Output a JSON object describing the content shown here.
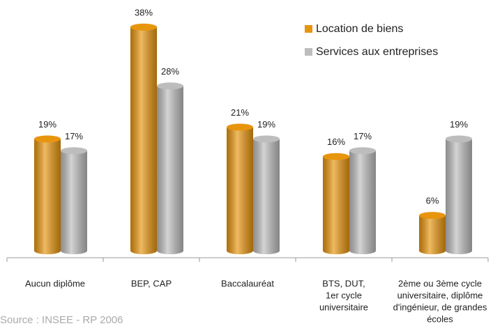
{
  "chart_data": {
    "type": "bar",
    "categories": [
      [
        "Aucun diplôme"
      ],
      [
        "BEP, CAP"
      ],
      [
        "Baccalauréat"
      ],
      [
        "BTS, DUT,",
        "1er cycle",
        "universitaire"
      ],
      [
        "2ème ou 3ème cycle",
        "universitaire, diplôme",
        "d'ingénieur, de grandes",
        "écoles"
      ]
    ],
    "series": [
      {
        "name": "Location de biens",
        "color": "#e8950e",
        "values": [
          19,
          38,
          21,
          16,
          6
        ],
        "value_labels": [
          "19%",
          "38%",
          "21%",
          "16%",
          "6%"
        ]
      },
      {
        "name": "Services aux entreprises",
        "color": "#bdbdbd",
        "values": [
          17,
          28,
          19,
          17,
          19
        ],
        "value_labels": [
          "17%",
          "28%",
          "19%",
          "17%",
          "19%"
        ]
      }
    ],
    "legend": "top-right",
    "source": "Source : INSEE - RP 2006"
  }
}
